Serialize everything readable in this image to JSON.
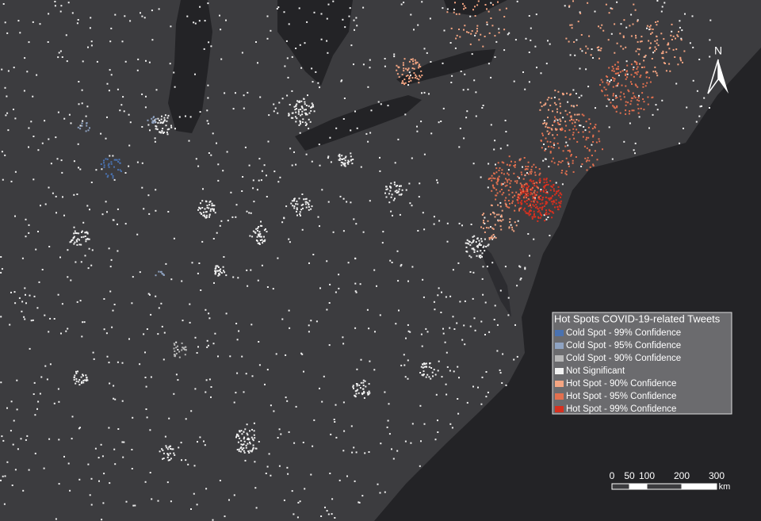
{
  "map": {
    "north_arrow": {
      "label": "N"
    },
    "legend": {
      "title": "Hot Spots COVID-19-related Tweets",
      "items": [
        {
          "label": "Cold Spot - 99% Confidence",
          "color": "#4a72b0"
        },
        {
          "label": "Cold Spot - 95% Confidence",
          "color": "#8fa3c2"
        },
        {
          "label": "Cold Spot - 90% Confidence",
          "color": "#b8b8b8"
        },
        {
          "label": "Not Significant",
          "color": "#f2f2f2"
        },
        {
          "label": "Hot Spot - 90% Confidence",
          "color": "#f4a582"
        },
        {
          "label": "Hot Spot - 95% Confidence",
          "color": "#e2704f"
        },
        {
          "label": "Hot Spot - 99% Confidence",
          "color": "#d7301f"
        }
      ]
    },
    "scale_bar": {
      "labels": [
        "0",
        "50",
        "100",
        "200",
        "300"
      ],
      "unit": "km"
    }
  }
}
